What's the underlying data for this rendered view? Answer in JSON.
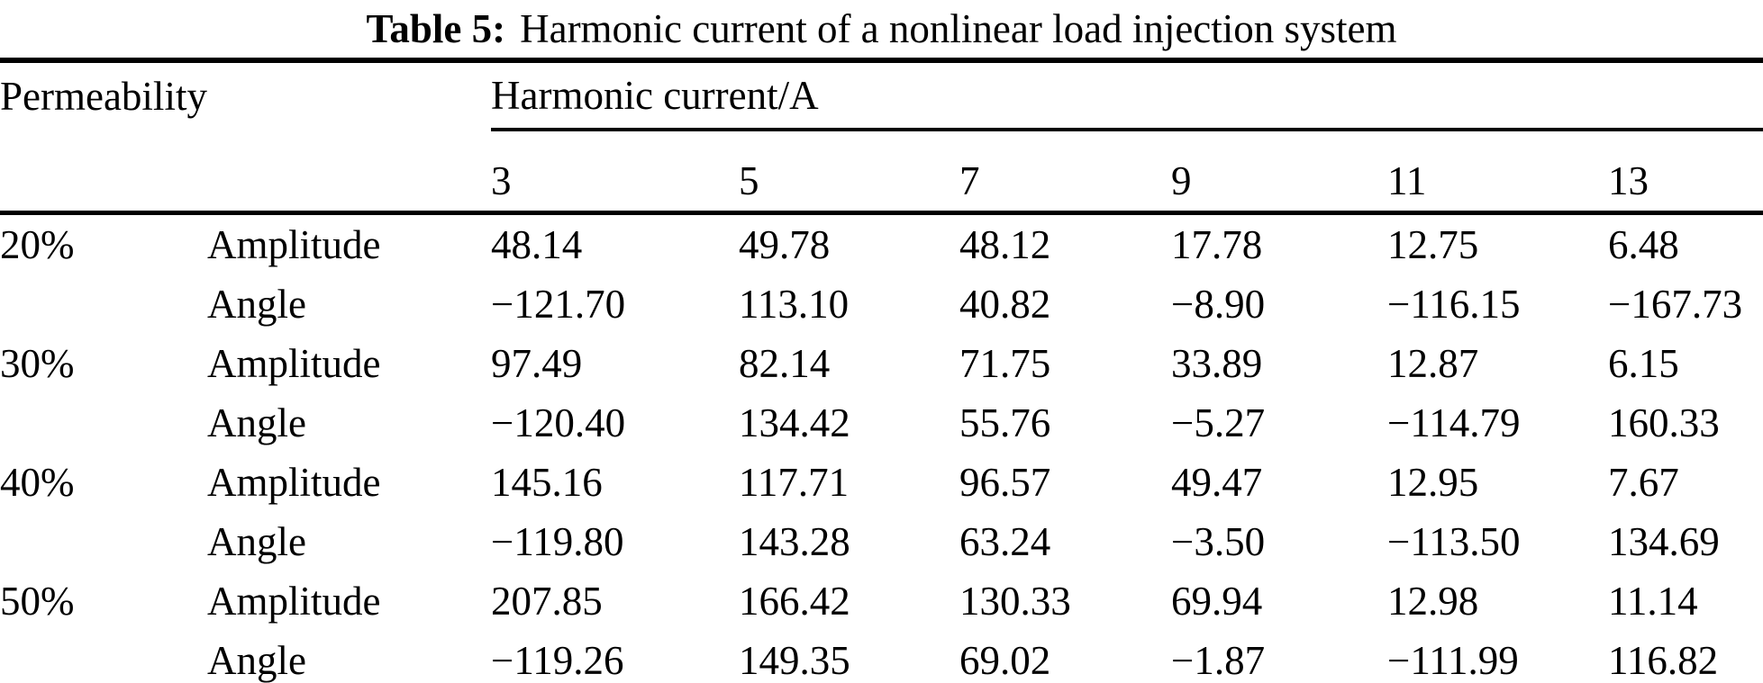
{
  "caption": {
    "label": "Table 5:",
    "text": "Harmonic current of a nonlinear load injection system"
  },
  "table": {
    "col1_header": "Permeability",
    "group_header": "Harmonic current/A",
    "harmonics": [
      "3",
      "5",
      "7",
      "9",
      "11",
      "13"
    ],
    "rows": [
      {
        "perm": "20%",
        "label": "Amplitude",
        "values": [
          "48.14",
          "49.78",
          "48.12",
          "17.78",
          "12.75",
          "6.48"
        ]
      },
      {
        "perm": "",
        "label": "Angle",
        "values": [
          "−121.70",
          "113.10",
          "40.82",
          "−8.90",
          "−116.15",
          "−167.73"
        ]
      },
      {
        "perm": "30%",
        "label": "Amplitude",
        "values": [
          "97.49",
          "82.14",
          "71.75",
          "33.89",
          "12.87",
          "6.15"
        ]
      },
      {
        "perm": "",
        "label": "Angle",
        "values": [
          "−120.40",
          "134.42",
          "55.76",
          "−5.27",
          "−114.79",
          "160.33"
        ]
      },
      {
        "perm": "40%",
        "label": "Amplitude",
        "values": [
          "145.16",
          "117.71",
          "96.57",
          "49.47",
          "12.95",
          "7.67"
        ]
      },
      {
        "perm": "",
        "label": "Angle",
        "values": [
          "−119.80",
          "143.28",
          "63.24",
          "−3.50",
          "−113.50",
          "134.69"
        ]
      },
      {
        "perm": "50%",
        "label": "Amplitude",
        "values": [
          "207.85",
          "166.42",
          "130.33",
          "69.94",
          "12.98",
          "11.14"
        ]
      },
      {
        "perm": "",
        "label": "Angle",
        "values": [
          "−119.26",
          "149.35",
          "69.02",
          "−1.87",
          "−111.99",
          "116.82"
        ]
      }
    ]
  },
  "colors": {
    "background": "#ffffff",
    "text": "#000000",
    "rule": "#000000"
  }
}
